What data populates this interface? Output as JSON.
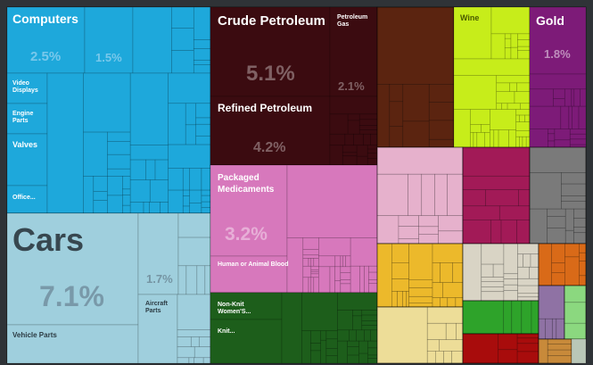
{
  "chart_data": {
    "type": "treemap",
    "labels": {
      "computers": "Computers",
      "video_displays_1": "Video",
      "video_displays_2": "Displays",
      "engine_parts_1": "Engine",
      "engine_parts_2": "Parts",
      "valves": "Valves",
      "office": "Office...",
      "cars": "Cars",
      "aircraft_parts_1": "Aircraft",
      "aircraft_parts_2": "Parts",
      "vehicle_parts": "Vehicle Parts",
      "crude_petroleum": "Crude Petroleum",
      "petroleum_gas_1": "Petroleum",
      "petroleum_gas_2": "Gas",
      "refined_petroleum": "Refined Petroleum",
      "packaged_medicaments_1": "Packaged",
      "packaged_medicaments_2": "Medicaments",
      "human_animal_blood": "Human or Animal Blood",
      "non_knit_1": "Non-Knit",
      "non_knit_2": " Women'S...",
      "knit": "Knit...",
      "wine": "Wine",
      "gold": "Gold"
    },
    "values": {
      "computers": "2.5%",
      "computers_2": "1.5%",
      "cars": "7.1%",
      "aircraft_parts": "1.7%",
      "crude_petroleum": "5.1%",
      "petroleum_gas": "2.1%",
      "refined_petroleum": "4.2%",
      "packaged_medicaments": "3.2%",
      "gold": "1.8%"
    },
    "colors": {
      "machinery": "#1ea8db",
      "transport": "#9fcfdd",
      "minerals": "#3b0b10",
      "chemicals": "#d778bc",
      "textiles": "#1d5e1b",
      "animal_hides": "#5b2410",
      "foodstuffs": "#c7ed1a",
      "precious_metals": "#7d1b78",
      "animal_products": "#e6b1cc",
      "plastics": "#a21a57",
      "metals": "#7a7a7a",
      "vegetable": "#ecb92b",
      "instruments": "#d9d4c5",
      "paper": "#eddd98",
      "wood": "#2ea32a",
      "footwear": "#a80c0c",
      "stone": "#d96a18",
      "misc": "#8f72a4",
      "arts": "#8bd87f",
      "weapons": "#c88a3a"
    }
  }
}
